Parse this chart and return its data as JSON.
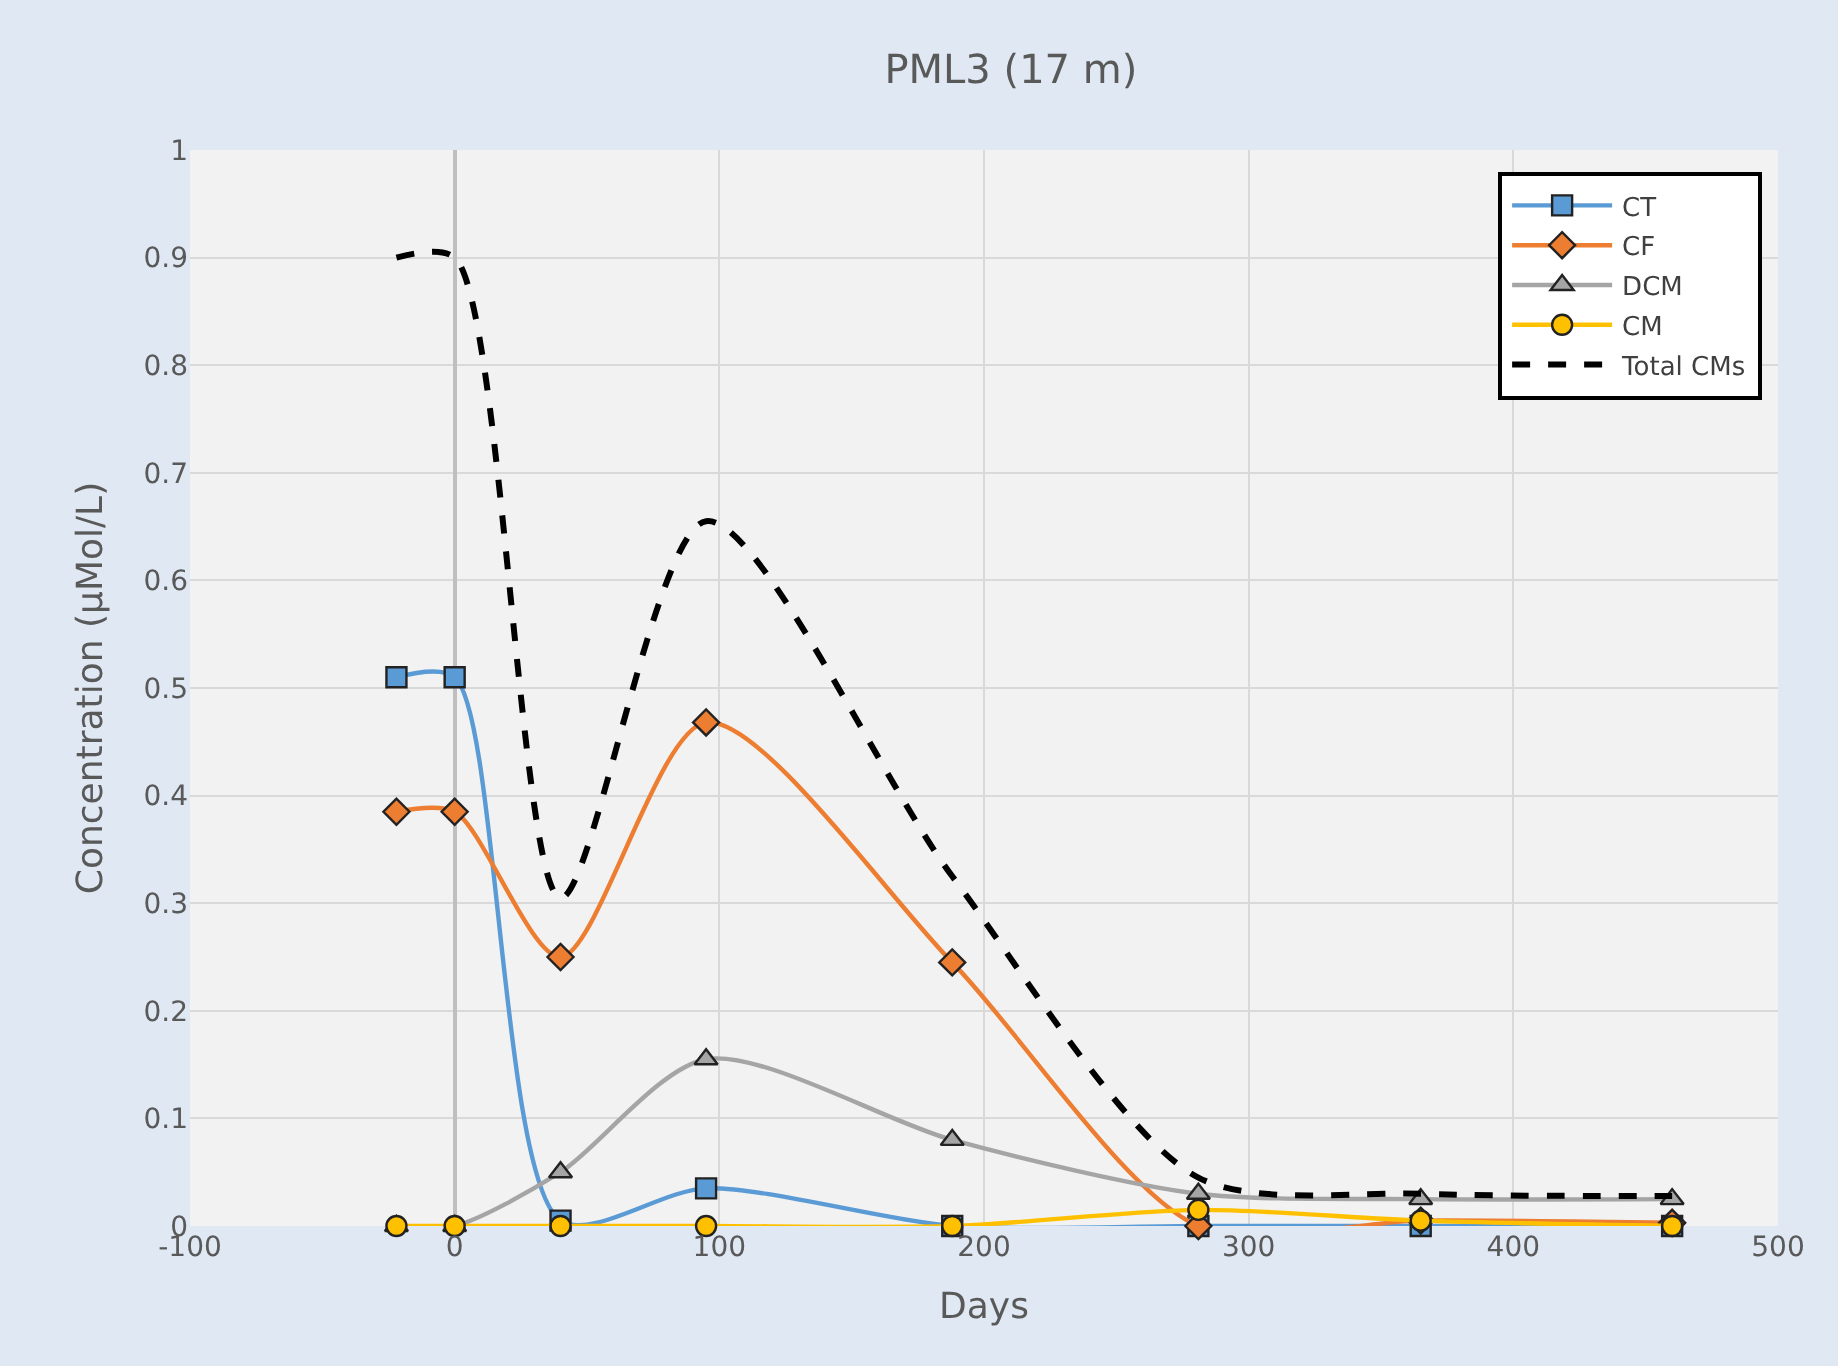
{
  "chart_data": {
    "type": "line",
    "title": "PML3 (17 m)",
    "xlabel": "Days",
    "ylabel": "Concentration (µMol/L)",
    "x": [
      -22,
      0,
      40,
      95,
      188,
      281,
      365,
      460
    ],
    "series": [
      {
        "name": "CT",
        "color": "#5b9bd5",
        "marker": "square",
        "line_style": "solid",
        "values": [
          0.51,
          0.51,
          0.005,
          0.035,
          0,
          0,
          0,
          0
        ]
      },
      {
        "name": "CF",
        "color": "#ed7d31",
        "marker": "diamond",
        "line_style": "solid",
        "values": [
          0.385,
          0.385,
          0.25,
          0.468,
          0.245,
          0,
          0.005,
          0.003
        ]
      },
      {
        "name": "DCM",
        "color": "#a5a5a5",
        "marker": "triangle",
        "line_style": "solid",
        "values": [
          0,
          0,
          0.05,
          0.155,
          0.08,
          0.03,
          0.025,
          0.025
        ]
      },
      {
        "name": "CM",
        "color": "#ffc000",
        "marker": "circle",
        "line_style": "solid",
        "values": [
          0,
          0,
          0,
          0,
          0,
          0.015,
          0.005,
          0
        ]
      },
      {
        "name": "Total CMs",
        "color": "#000000",
        "marker": "none",
        "line_style": "dashed",
        "values": [
          0.9,
          0.9,
          0.305,
          0.655,
          0.325,
          0.045,
          0.03,
          0.028
        ]
      }
    ],
    "xlim": [
      -100,
      500
    ],
    "xticks": [
      -100,
      0,
      100,
      200,
      300,
      400,
      500
    ],
    "ylim": [
      0,
      1
    ],
    "yticks": [
      0,
      0.1,
      0.2,
      0.3,
      0.4,
      0.5,
      0.6,
      0.7,
      0.8,
      0.9,
      1
    ],
    "grid": true,
    "legend": "top right"
  }
}
